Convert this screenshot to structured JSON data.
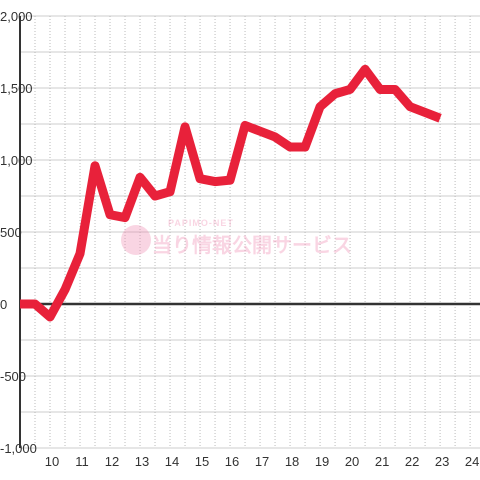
{
  "chart_data": {
    "type": "line",
    "watermark": "当り情報公開サービス",
    "watermark_small": "PAPIMO-NET",
    "x": [
      9,
      9.5,
      10,
      10.5,
      11,
      11.5,
      12,
      12.5,
      13,
      13.5,
      14,
      14.5,
      15,
      15.5,
      16,
      16.5,
      17,
      17.5,
      18,
      18.5,
      19,
      19.5,
      20,
      20.5,
      21,
      21.5,
      22,
      22.5,
      23
    ],
    "series": [
      {
        "color": "#e8213a",
        "values": [
          0,
          0,
          -90,
          100,
          350,
          960,
          620,
          600,
          880,
          750,
          780,
          1230,
          870,
          850,
          860,
          1240,
          1200,
          1160,
          1090,
          1090,
          1370,
          1460,
          1490,
          1630,
          1490,
          1490,
          1370,
          1330,
          1290
        ]
      }
    ],
    "xlim": [
      9,
      24.33
    ],
    "xticks": [
      10,
      11,
      12,
      13,
      14,
      15,
      16,
      17,
      18,
      19,
      20,
      21,
      22,
      23,
      24
    ],
    "ylim": [
      -1000,
      2000
    ],
    "yticks": [
      {
        "value": -1000,
        "label": "-1,000"
      },
      {
        "value": -500,
        "label": "-500"
      },
      0,
      500,
      {
        "value": 1000,
        "label": "1,000"
      },
      {
        "value": 1500,
        "label": "1,500"
      },
      {
        "value": 2000,
        "label": "2,000"
      }
    ],
    "grid": true
  }
}
